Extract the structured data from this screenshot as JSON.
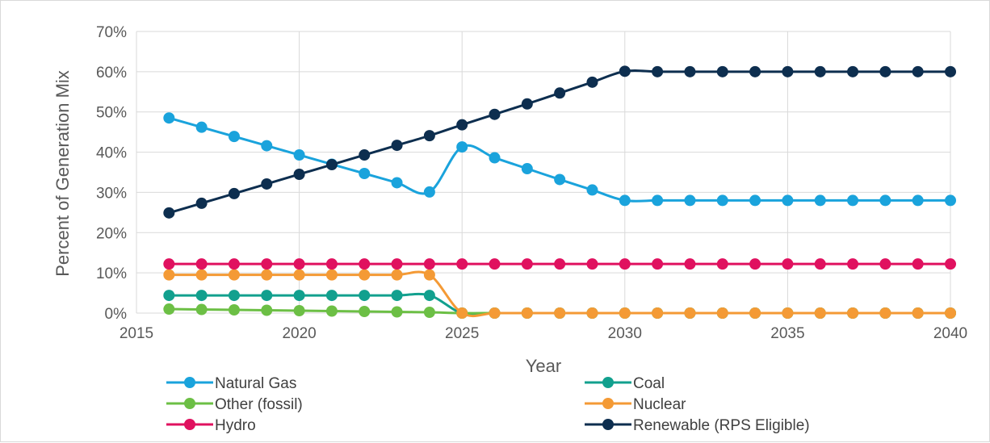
{
  "chart_data": {
    "type": "line",
    "title": "",
    "xlabel": "Year",
    "ylabel": "Percent of Generation Mix",
    "xlim": [
      2015,
      2040
    ],
    "ylim": [
      0,
      70
    ],
    "x_ticks": [
      "2015",
      "2020",
      "2025",
      "2030",
      "2035",
      "2040"
    ],
    "y_ticks": [
      "0%",
      "10%",
      "20%",
      "30%",
      "40%",
      "50%",
      "60%",
      "70%"
    ],
    "grid": "vertical and horizontal major gridlines",
    "legend_position": "bottom, two columns",
    "x": [
      2016,
      2017,
      2018,
      2019,
      2020,
      2021,
      2022,
      2023,
      2024,
      2025,
      2026,
      2027,
      2028,
      2029,
      2030,
      2031,
      2032,
      2033,
      2034,
      2035,
      2036,
      2037,
      2038,
      2039,
      2040
    ],
    "series": [
      {
        "name": "Natural Gas",
        "color": "#1AA3DC",
        "values": [
          48.5,
          46.2,
          43.9,
          41.6,
          39.3,
          37.0,
          34.7,
          32.4,
          30.1,
          41.3,
          38.6,
          35.9,
          33.2,
          30.6,
          28.0,
          28.0,
          28.0,
          28.0,
          28.0,
          28.0,
          28.0,
          28.0,
          28.0,
          28.0,
          28.0
        ]
      },
      {
        "name": "Coal",
        "color": "#12A08E",
        "values": [
          4.4,
          4.4,
          4.4,
          4.4,
          4.4,
          4.4,
          4.4,
          4.4,
          4.4,
          0,
          0,
          0,
          0,
          0,
          0,
          0,
          0,
          0,
          0,
          0,
          0,
          0,
          0,
          0,
          0
        ]
      },
      {
        "name": "Other (fossil)",
        "color": "#6CBF45",
        "values": [
          1.0,
          0.9,
          0.8,
          0.7,
          0.6,
          0.5,
          0.4,
          0.3,
          0.2,
          0,
          0,
          0,
          0,
          0,
          0,
          0,
          0,
          0,
          0,
          0,
          0,
          0,
          0,
          0,
          0
        ]
      },
      {
        "name": "Nuclear",
        "color": "#F49A35",
        "values": [
          9.5,
          9.5,
          9.5,
          9.5,
          9.5,
          9.5,
          9.5,
          9.5,
          9.5,
          0,
          0,
          0,
          0,
          0,
          0,
          0,
          0,
          0,
          0,
          0,
          0,
          0,
          0,
          0,
          0
        ]
      },
      {
        "name": "Hydro",
        "color": "#E0115F",
        "values": [
          12.2,
          12.2,
          12.2,
          12.2,
          12.2,
          12.2,
          12.2,
          12.2,
          12.2,
          12.2,
          12.2,
          12.2,
          12.2,
          12.2,
          12.2,
          12.2,
          12.2,
          12.2,
          12.2,
          12.2,
          12.2,
          12.2,
          12.2,
          12.2,
          12.2
        ]
      },
      {
        "name": "Renewable (RPS Eligible)",
        "color": "#0D2E4F",
        "values": [
          24.9,
          27.3,
          29.7,
          32.1,
          34.5,
          36.9,
          39.3,
          41.7,
          44.1,
          46.8,
          49.4,
          52.0,
          54.7,
          57.4,
          60.1,
          60.0,
          60.0,
          60.0,
          60.0,
          60.0,
          60.0,
          60.0,
          60.0,
          60.0,
          60.0
        ]
      }
    ]
  }
}
